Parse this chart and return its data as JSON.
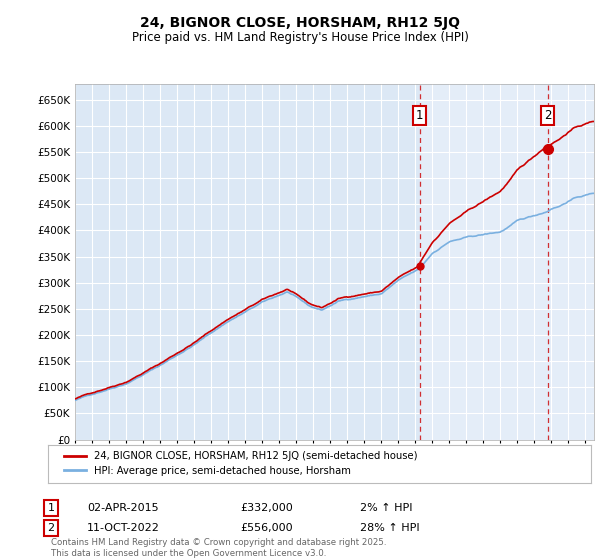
{
  "title": "24, BIGNOR CLOSE, HORSHAM, RH12 5JQ",
  "subtitle": "Price paid vs. HM Land Registry's House Price Index (HPI)",
  "yticks": [
    0,
    50000,
    100000,
    150000,
    200000,
    250000,
    300000,
    350000,
    400000,
    450000,
    500000,
    550000,
    600000,
    650000
  ],
  "ylim": [
    0,
    680000
  ],
  "xlim_start": 1995,
  "xlim_end": 2025.5,
  "plot_bg_color": "#dce8f5",
  "plot_bg_color_right": "#e8f0fa",
  "grid_color": "#ffffff",
  "hpi_color": "#7ab0e0",
  "price_color": "#cc0000",
  "sale1_year": 2015.25,
  "sale1_price": 332000,
  "sale2_year": 2022.78,
  "sale2_price": 556000,
  "legend_line1": "24, BIGNOR CLOSE, HORSHAM, RH12 5JQ (semi-detached house)",
  "legend_line2": "HPI: Average price, semi-detached house, Horsham",
  "footer": "Contains HM Land Registry data © Crown copyright and database right 2025.\nThis data is licensed under the Open Government Licence v3.0."
}
